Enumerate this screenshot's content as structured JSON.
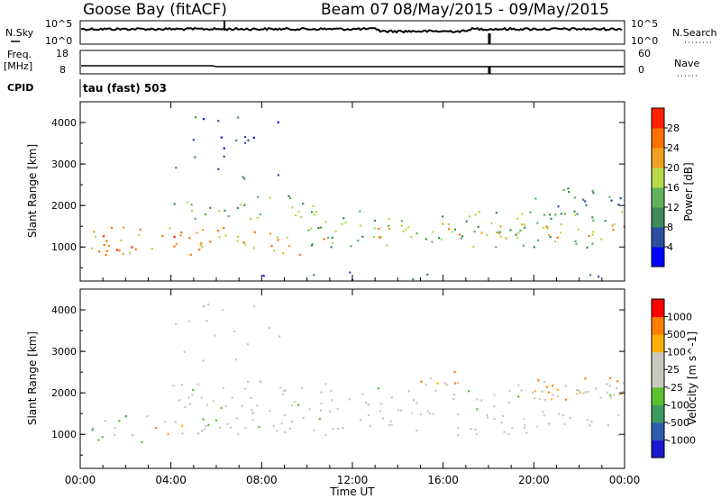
{
  "header": {
    "station": "Goose Bay (fitACF)",
    "beam": "Beam 07",
    "date_range": "08/May/2015 - 09/May/2015"
  },
  "strips": {
    "nsky_label": "N.Sky",
    "nsearch_label": "N.Search",
    "nsky_ticks": [
      "10^5",
      "10^0"
    ],
    "nsearch_ticks": [
      "10^5",
      "10^0"
    ],
    "freq_label": "Freq.",
    "freq_unit": "[MHz]",
    "freq_ticks": [
      "18",
      "8"
    ],
    "nave_label": "Nave",
    "nave_ticks": [
      "60",
      "0"
    ],
    "cpid_label": "CPID",
    "cpid_value": "tau (fast) 503"
  },
  "colors": {
    "power_scale": [
      "#0000ff",
      "#2a4fa0",
      "#3d8a5a",
      "#5fb35f",
      "#b8d84a",
      "#f0a020",
      "#ff7000",
      "#ff2000"
    ],
    "velocity_scale": [
      "#ff0000",
      "#ff8000",
      "#ffb000",
      "#c8c8c0",
      "#c8c8c0",
      "#5cc02c",
      "#3c9c5c",
      "#2e5cae",
      "#1a1ad0"
    ],
    "ground_scatter": "#c8c8c0",
    "trace": "#000000"
  },
  "chart_data": [
    {
      "type": "heatmap",
      "name": "power",
      "ylabel": "Slant Range [km]",
      "yticks": [
        "1000",
        "2000",
        "3000",
        "4000"
      ],
      "ylim": [
        180,
        4500
      ],
      "xlim_hours": [
        0,
        24
      ],
      "colorbar_label": "Power [dB]",
      "colorbar_ticks": [
        "4",
        "8",
        "12",
        "16",
        "20",
        "24",
        "28"
      ],
      "colorbar_range": [
        0,
        32
      ],
      "features": [
        {
          "t0": 0.3,
          "t1": 10.5,
          "r0": 800,
          "r1": 1500,
          "level": 5
        },
        {
          "t0": 0.5,
          "t1": 2.8,
          "r0": 900,
          "r1": 1300,
          "level": 7
        },
        {
          "t0": 3.0,
          "t1": 4.5,
          "r0": 1000,
          "r1": 1400,
          "level": 6
        },
        {
          "t0": 4.0,
          "t1": 10.5,
          "r0": 1700,
          "r1": 2300,
          "level": 3
        },
        {
          "t0": 10.0,
          "t1": 24.0,
          "r0": 1000,
          "r1": 1900,
          "level": 3
        },
        {
          "t0": 10.5,
          "t1": 24.0,
          "r0": 1200,
          "r1": 1600,
          "level": 5
        },
        {
          "t0": 4.0,
          "t1": 9.0,
          "r0": 2600,
          "r1": 4200,
          "level": 1
        },
        {
          "t0": 20.0,
          "t1": 24.0,
          "r0": 1800,
          "r1": 2500,
          "level": 2
        },
        {
          "t0": 8.0,
          "t1": 24.0,
          "r0": 200,
          "r1": 450,
          "level": 1
        }
      ]
    },
    {
      "type": "heatmap",
      "name": "velocity",
      "ylabel": "Slant Range [km]",
      "yticks": [
        "1000",
        "2000",
        "3000",
        "4000"
      ],
      "ylim": [
        180,
        4500
      ],
      "xlim_hours": [
        0,
        24
      ],
      "xticks": [
        "00:00",
        "04:00",
        "08:00",
        "12:00",
        "16:00",
        "20:00",
        "00:00"
      ],
      "xlabel": "Time UT",
      "colorbar_label": "Velocity [m s^-1]",
      "colorbar_ticks": [
        "1000",
        "500",
        "100",
        "25",
        "-25",
        "-100",
        "-500",
        "-1000"
      ],
      "features": [
        {
          "t0": 0.3,
          "t1": 3.0,
          "r0": 800,
          "r1": 1500,
          "class": "toward"
        },
        {
          "t0": 3.0,
          "t1": 4.5,
          "r0": 1000,
          "r1": 1400,
          "class": "away"
        },
        {
          "t0": 4.0,
          "t1": 24.0,
          "r0": 1000,
          "r1": 2300,
          "class": "ground"
        },
        {
          "t0": 14.5,
          "t1": 17.0,
          "r0": 2200,
          "r1": 2600,
          "class": "away"
        },
        {
          "t0": 20.0,
          "t1": 24.0,
          "r0": 1800,
          "r1": 2400,
          "class": "away"
        },
        {
          "t0": 4.0,
          "t1": 9.0,
          "r0": 2600,
          "r1": 4200,
          "class": "ground"
        }
      ]
    }
  ]
}
